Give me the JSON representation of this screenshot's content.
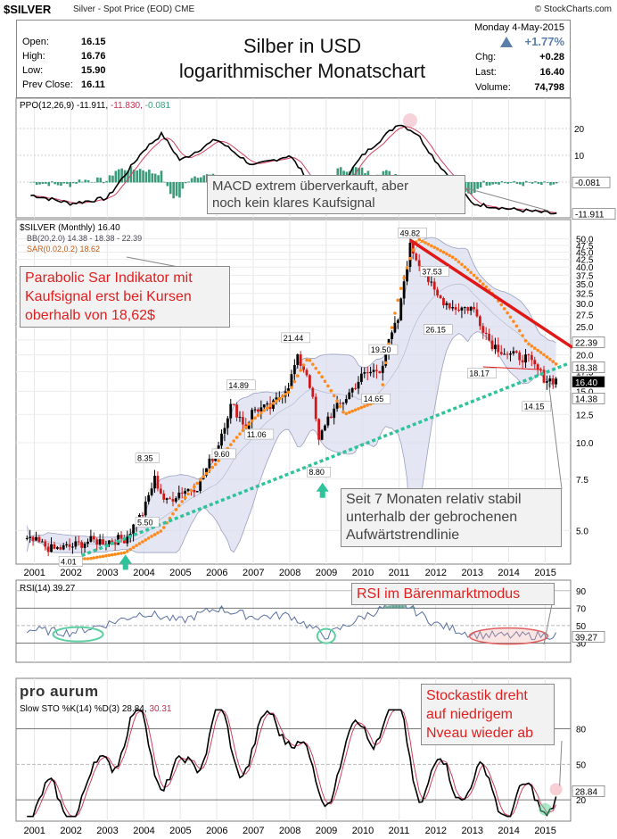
{
  "header": {
    "symbol": "$SILVER",
    "description": "Silver - Spot Price (EOD)",
    "exchange": "CME",
    "brand": "© StockCharts.com"
  },
  "quote": {
    "open_label": "Open:",
    "open": "16.15",
    "high_label": "High:",
    "high": "16.76",
    "low_label": "Low:",
    "low": "15.90",
    "prev_label": "Prev Close:",
    "prev": "16.11",
    "title_line1": "Silber in USD",
    "title_line2": "logarithmischer Monatschart",
    "date": "Monday  4-May-2015",
    "chg_pct": "+1.77%",
    "chg_label": "Chg:",
    "chg": "+0.28",
    "last_label": "Last:",
    "last": "16.40",
    "volume_label": "Volume:",
    "volume": "74,798"
  },
  "ppo_panel": {
    "label_name": "PPO(12,26,9)",
    "value1": "-11.911,",
    "value2": "-11.830,",
    "value3": "-0.081",
    "ticks": [
      "20",
      "10",
      "0"
    ],
    "right_badges": [
      "-0.081",
      "-11.911"
    ],
    "callout": [
      "MACD extrem überverkauft, aber",
      "noch kein klares Kaufsignal"
    ]
  },
  "price_panel": {
    "legend1": "$SILVER (Monthly) 16.40",
    "legend2": "BB(20,2.0) 14.38 - 18.38 - 22.39",
    "legend3": "SAR(0.02,0.2) 18.62",
    "callout_left": [
      "Parabolic Sar Indikator mit",
      "Kaufsignal erst bei Kursen",
      "oberhalb von 18,62$"
    ],
    "callout_right": [
      "Seit 7 Monaten relativ stabil",
      "unterhalb der gebrochenen",
      "Aufwärtstrendlinie"
    ],
    "right_badges": [
      "22.39",
      "18.38",
      "16.40",
      "14.38"
    ],
    "ticks": [
      "50.0",
      "47.5",
      "45.0",
      "42.5",
      "40.0",
      "37.5",
      "35.0",
      "32.5",
      "30.0",
      "27.5",
      "25.0",
      "22.5",
      "20.0",
      "17.5",
      "15.0",
      "12.5",
      "10.0",
      "7.5",
      "5.0"
    ]
  },
  "rsi_panel": {
    "label": "RSI(14) 39.27",
    "callout": "RSI im Bärenmarktmodus",
    "ticks": [
      "90",
      "70",
      "50",
      "30"
    ],
    "badge": "39.27"
  },
  "sto_panel": {
    "logo": "pro aurum",
    "label_a": "Slow STO %K(14) %D(3) 28.84,",
    "label_b": "30.31",
    "callout": [
      "Stockastik dreht",
      "auf niedrigem",
      "Nveau wieder ab"
    ],
    "ticks": [
      "80",
      "50",
      "20"
    ],
    "badge": "28.84"
  },
  "axis_years": [
    "2001",
    "2002",
    "2003",
    "2004",
    "2005",
    "2006",
    "2007",
    "2008",
    "2009",
    "2010",
    "2011",
    "2012",
    "2013",
    "2014",
    "2015"
  ],
  "colors": {
    "up": "#000000",
    "down": "#d01818",
    "sar": "#ff8a1a",
    "trend_up": "#2ec39a",
    "trend_down": "#e01818",
    "bb_fill": "#d8dcee",
    "bb_line": "#9aa0c0",
    "ppo_hist": "#3a9a7a",
    "signal": "#d04060"
  },
  "chart_data": [
    {
      "type": "line",
      "title": "Silber in USD logarithmischer Monatschart",
      "series": [
        {
          "name": "$SILVER (Monthly)",
          "x": [
            2001,
            2001.5,
            2002,
            2002.5,
            2003,
            2003.5,
            2004,
            2004.3,
            2004.6,
            2005,
            2005.5,
            2006,
            2006.4,
            2006.8,
            2007,
            2007.5,
            2008,
            2008.2,
            2008.5,
            2008.8,
            2009,
            2009.5,
            2010,
            2010.5,
            2011,
            2011.3,
            2011.6,
            2012,
            2012.5,
            2013,
            2013.5,
            2014,
            2014.5,
            2015,
            2015.3
          ],
          "values": [
            4.6,
            4.3,
            4.4,
            4.6,
            4.6,
            4.7,
            5.8,
            7.5,
            6.2,
            6.8,
            7.1,
            9.5,
            13.5,
            11.3,
            13.0,
            13.2,
            16.0,
            19.5,
            17.0,
            10.0,
            12.0,
            14.0,
            17.0,
            18.0,
            27.0,
            47.0,
            40.0,
            32.0,
            29.0,
            29.0,
            22.0,
            20.0,
            19.5,
            16.5,
            16.4
          ]
        },
        {
          "name": "SAR(0.02,0.2)",
          "x": [
            2002.5,
            2003.5,
            2004.5,
            2006,
            2007,
            2008,
            2008.5,
            2009.5,
            2010.5,
            2011.5,
            2012.5,
            2013.5,
            2014.5,
            2015.3
          ],
          "values": [
            4.0,
            4.2,
            5.0,
            8.5,
            12.0,
            15.0,
            19.5,
            12.5,
            14.0,
            50.0,
            43.0,
            33.0,
            22.0,
            18.62
          ]
        }
      ],
      "annotations": [
        "49.82",
        "37.53",
        "26.15",
        "21.44",
        "19.50",
        "18.17",
        "14.89",
        "14.65",
        "14.15",
        "11.06",
        "9.60",
        "8.35",
        "8.80",
        "5.50",
        "4.01"
      ],
      "yscale": "log",
      "ylim": [
        4.0,
        52.0
      ],
      "xlim": [
        2000.5,
        2015.7
      ]
    },
    {
      "type": "line",
      "series": [
        {
          "name": "PPO(12,26,9)",
          "x": [
            2001,
            2002,
            2003,
            2004,
            2004.5,
            2005,
            2006,
            2007,
            2008,
            2009,
            2010,
            2011,
            2011.5,
            2012,
            2013,
            2014,
            2015.3
          ],
          "values": [
            -5,
            -8,
            -6,
            12,
            18,
            8,
            16,
            6,
            10,
            -8,
            10,
            22,
            18,
            8,
            -8,
            -10,
            -11.911
          ]
        }
      ],
      "ylim": [
        -12,
        26
      ]
    },
    {
      "type": "line",
      "series": [
        {
          "name": "RSI(14)",
          "x": [
            2001,
            2002,
            2003,
            2004,
            2005,
            2006,
            2007,
            2008,
            2009,
            2010,
            2011,
            2012,
            2013,
            2014,
            2015.3
          ],
          "values": [
            45,
            42,
            52,
            65,
            55,
            70,
            60,
            62,
            38,
            60,
            78,
            52,
            40,
            38,
            39.27
          ]
        }
      ],
      "ylim": [
        10,
        100
      ]
    },
    {
      "type": "line",
      "series": [
        {
          "name": "Slow STO %K(14)",
          "x": [
            2001,
            2001.8,
            2002.5,
            2003,
            2004,
            2004.5,
            2005,
            2006,
            2006.5,
            2007,
            2008,
            2008.8,
            2009.5,
            2010,
            2011,
            2011.6,
            2012,
            2013,
            2014,
            2014.5,
            2015.3
          ],
          "values": [
            20,
            15,
            25,
            60,
            85,
            40,
            35,
            90,
            50,
            70,
            88,
            20,
            60,
            80,
            90,
            30,
            40,
            35,
            20,
            15,
            28.84
          ]
        }
      ],
      "ylim": [
        5,
        100
      ]
    }
  ]
}
